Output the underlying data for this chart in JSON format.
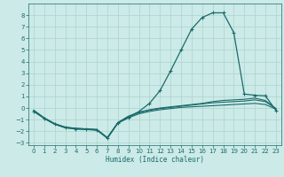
{
  "xlabel": "Humidex (Indice chaleur)",
  "bg_color": "#cceae7",
  "line_color": "#1a6b6b",
  "grid_color": "#aad4d0",
  "xlim": [
    -0.5,
    23.5
  ],
  "ylim": [
    -3.2,
    9.0
  ],
  "xticks": [
    0,
    1,
    2,
    3,
    4,
    5,
    6,
    7,
    8,
    9,
    10,
    11,
    12,
    13,
    14,
    15,
    16,
    17,
    18,
    19,
    20,
    21,
    22,
    23
  ],
  "yticks": [
    -3,
    -2,
    -1,
    0,
    1,
    2,
    3,
    4,
    5,
    6,
    7,
    8
  ],
  "series": [
    {
      "x": [
        0,
        1,
        2,
        3,
        4,
        5,
        6,
        7,
        8,
        9,
        10,
        11,
        12,
        13,
        14,
        15,
        16,
        17,
        18,
        19,
        20,
        21,
        22,
        23
      ],
      "y": [
        -0.2,
        -0.9,
        -1.4,
        -1.7,
        -1.8,
        -1.85,
        -1.9,
        -2.6,
        -1.3,
        -0.85,
        -0.5,
        -0.3,
        -0.15,
        -0.05,
        0.05,
        0.1,
        0.15,
        0.2,
        0.25,
        0.3,
        0.35,
        0.4,
        0.3,
        -0.1
      ],
      "marker": false
    },
    {
      "x": [
        0,
        1,
        2,
        3,
        4,
        5,
        6,
        7,
        8,
        9,
        10,
        11,
        12,
        13,
        14,
        15,
        16,
        17,
        18,
        19,
        20,
        21,
        22,
        23
      ],
      "y": [
        -0.2,
        -0.85,
        -1.35,
        -1.65,
        -1.75,
        -1.8,
        -1.85,
        -2.55,
        -1.25,
        -0.75,
        -0.4,
        -0.2,
        -0.05,
        0.05,
        0.15,
        0.25,
        0.35,
        0.45,
        0.5,
        0.55,
        0.6,
        0.7,
        0.55,
        -0.05
      ],
      "marker": false
    },
    {
      "x": [
        0,
        1,
        2,
        3,
        4,
        5,
        6,
        7,
        8,
        9,
        10,
        11,
        12,
        13,
        14,
        15,
        16,
        17,
        18,
        19,
        20,
        21,
        22,
        23
      ],
      "y": [
        -0.2,
        -0.85,
        -1.35,
        -1.65,
        -1.75,
        -1.8,
        -1.85,
        -2.55,
        -1.25,
        -0.7,
        -0.35,
        -0.15,
        0.0,
        0.1,
        0.2,
        0.3,
        0.4,
        0.55,
        0.65,
        0.7,
        0.75,
        0.85,
        0.65,
        -0.05
      ],
      "marker": false
    },
    {
      "x": [
        0,
        1,
        2,
        3,
        4,
        5,
        6,
        7,
        8,
        9,
        10,
        11,
        12,
        13,
        14,
        15,
        16,
        17,
        18,
        19,
        20,
        21,
        22,
        23
      ],
      "y": [
        -0.3,
        -0.9,
        -1.4,
        -1.7,
        -1.8,
        -1.85,
        -1.9,
        -2.6,
        -1.3,
        -0.8,
        -0.3,
        0.4,
        1.5,
        3.2,
        5.0,
        6.8,
        7.8,
        8.2,
        8.2,
        6.5,
        1.2,
        1.1,
        1.05,
        -0.2
      ],
      "marker": true
    }
  ]
}
